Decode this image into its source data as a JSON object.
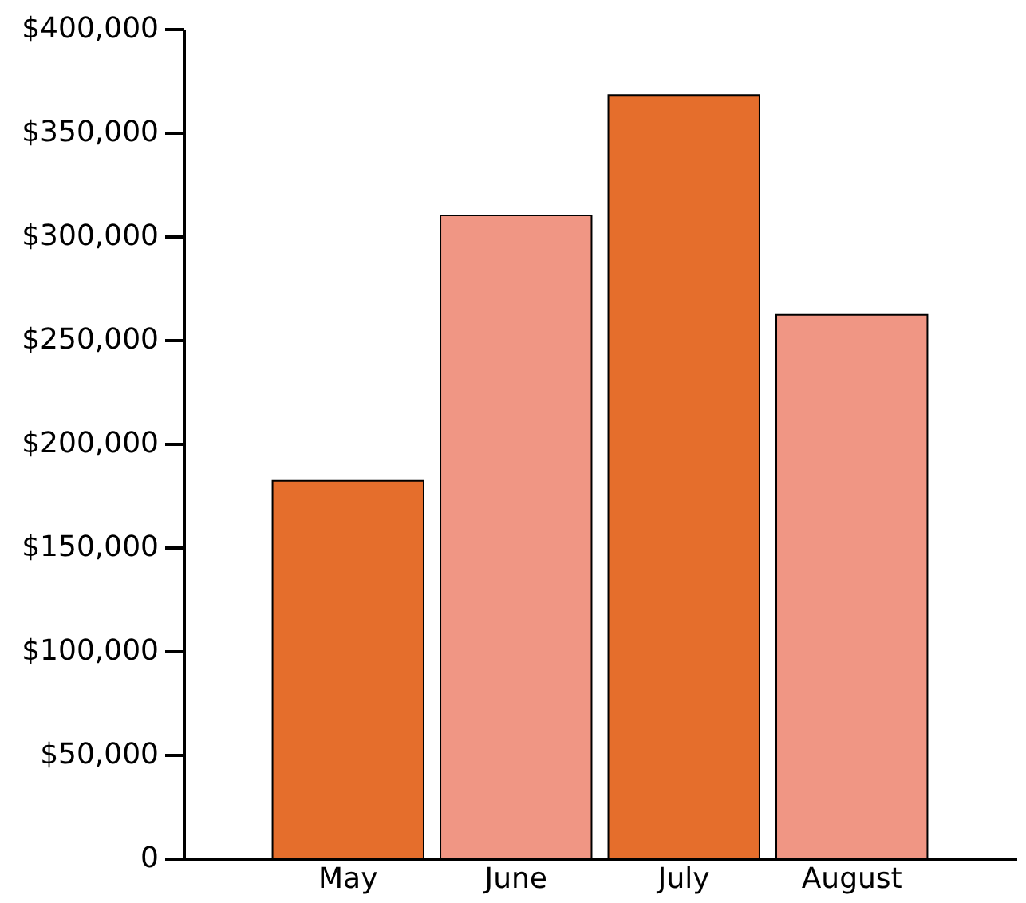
{
  "chart_data": {
    "type": "bar",
    "categories": [
      "May",
      "June",
      "July",
      "August"
    ],
    "values": [
      182000,
      310000,
      368000,
      262000
    ],
    "colors": [
      "#e56e2c",
      "#f09684",
      "#e56e2c",
      "#f09684"
    ],
    "ylim": [
      0,
      400000
    ],
    "yticks": [
      {
        "value": 0,
        "label": "0"
      },
      {
        "value": 50000,
        "label": "$50,000"
      },
      {
        "value": 100000,
        "label": "$100,000"
      },
      {
        "value": 150000,
        "label": "$150,000"
      },
      {
        "value": 200000,
        "label": "$200,000"
      },
      {
        "value": 250000,
        "label": "$250,000"
      },
      {
        "value": 300000,
        "label": "$300,000"
      },
      {
        "value": 350000,
        "label": "$350,000"
      },
      {
        "value": 400000,
        "label": "$400,000"
      }
    ],
    "grid": false
  }
}
